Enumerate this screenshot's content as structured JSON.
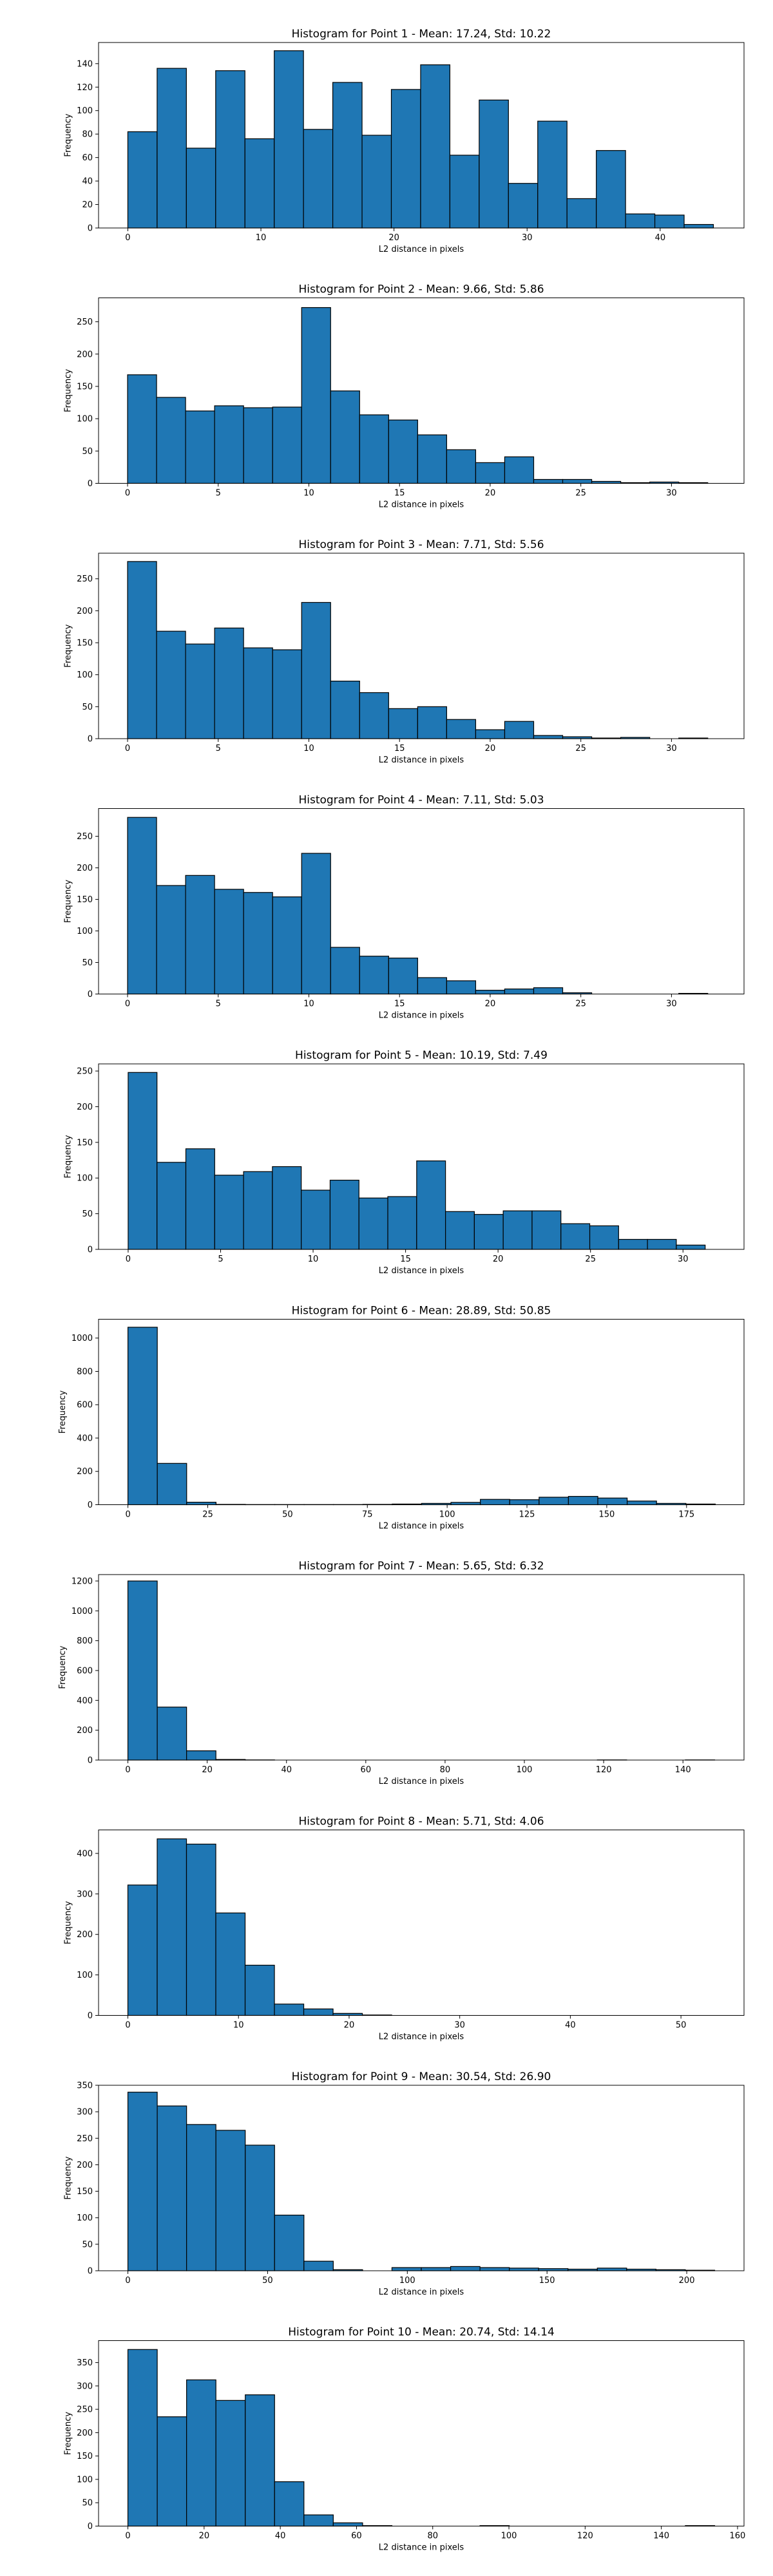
{
  "chart_data": [
    {
      "type": "bar",
      "title": "Histogram for Point 1 - Mean: 17.24, Std: 10.22",
      "xlabel": "L2 distance in pixels",
      "ylabel": "Frequency",
      "xlim": [
        -2.2,
        46.3
      ],
      "ylim": [
        0,
        158
      ],
      "xticks": [
        0,
        10,
        20,
        30,
        40
      ],
      "yticks": [
        0,
        20,
        40,
        60,
        80,
        100,
        120,
        140
      ],
      "bin_edges": [
        0,
        2.2,
        4.4,
        6.6,
        8.8,
        11.0,
        13.2,
        15.4,
        17.6,
        19.8,
        22.0,
        24.2,
        26.4,
        28.6,
        30.8,
        33.0,
        35.2,
        37.4,
        39.6,
        41.8,
        44.0
      ],
      "values": [
        82,
        136,
        68,
        134,
        76,
        151,
        84,
        124,
        79,
        118,
        139,
        62,
        109,
        38,
        91,
        25,
        66,
        12,
        11,
        3
      ]
    },
    {
      "type": "bar",
      "title": "Histogram for Point 2 - Mean: 9.66, Std: 5.86",
      "xlabel": "L2 distance in pixels",
      "ylabel": "Frequency",
      "xlim": [
        -1.6,
        34.0
      ],
      "ylim": [
        0,
        287
      ],
      "xticks": [
        0,
        5,
        10,
        15,
        20,
        25,
        30
      ],
      "yticks": [
        0,
        50,
        100,
        150,
        200,
        250
      ],
      "bin_edges": [
        0,
        1.6,
        3.2,
        4.8,
        6.4,
        8.0,
        9.6,
        11.2,
        12.8,
        14.4,
        16.0,
        17.6,
        19.2,
        20.8,
        22.4,
        24.0,
        25.6,
        27.2,
        28.8,
        30.4,
        32.0
      ],
      "values": [
        168,
        133,
        112,
        120,
        117,
        118,
        272,
        143,
        106,
        98,
        75,
        52,
        32,
        41,
        6,
        6,
        3,
        1,
        2,
        1
      ]
    },
    {
      "type": "bar",
      "title": "Histogram for Point 3 - Mean: 7.71, Std: 5.56",
      "xlabel": "L2 distance in pixels",
      "ylabel": "Frequency",
      "xlim": [
        -1.6,
        34.0
      ],
      "ylim": [
        0,
        290
      ],
      "xticks": [
        0,
        5,
        10,
        15,
        20,
        25,
        30
      ],
      "yticks": [
        0,
        50,
        100,
        150,
        200,
        250
      ],
      "bin_edges": [
        0,
        1.6,
        3.2,
        4.8,
        6.4,
        8.0,
        9.6,
        11.2,
        12.8,
        14.4,
        16.0,
        17.6,
        19.2,
        20.8,
        22.4,
        24.0,
        25.6,
        27.2,
        28.8,
        30.4,
        32.0
      ],
      "values": [
        277,
        168,
        148,
        173,
        142,
        139,
        213,
        90,
        72,
        47,
        50,
        30,
        14,
        27,
        5,
        3,
        1,
        2,
        0,
        1
      ]
    },
    {
      "type": "bar",
      "title": "Histogram for Point 4 - Mean: 7.11, Std: 5.03",
      "xlabel": "L2 distance in pixels",
      "ylabel": "Frequency",
      "xlim": [
        -1.6,
        34.0
      ],
      "ylim": [
        0,
        294
      ],
      "xticks": [
        0,
        5,
        10,
        15,
        20,
        25,
        30
      ],
      "yticks": [
        0,
        50,
        100,
        150,
        200,
        250
      ],
      "bin_edges": [
        0,
        1.6,
        3.2,
        4.8,
        6.4,
        8.0,
        9.6,
        11.2,
        12.8,
        14.4,
        16.0,
        17.6,
        19.2,
        20.8,
        22.4,
        24.0,
        25.6,
        27.2,
        28.8,
        30.4,
        32.0
      ],
      "values": [
        280,
        172,
        188,
        166,
        161,
        154,
        223,
        74,
        60,
        57,
        26,
        21,
        6,
        8,
        10,
        2,
        0,
        0,
        0,
        1
      ]
    },
    {
      "type": "bar",
      "title": "Histogram for Point 5 - Mean: 10.19, Std: 7.49",
      "xlabel": "L2 distance in pixels",
      "ylabel": "Frequency",
      "xlim": [
        -1.6,
        33.3
      ],
      "ylim": [
        0,
        260
      ],
      "xticks": [
        0,
        5,
        10,
        15,
        20,
        25,
        30
      ],
      "yticks": [
        0,
        50,
        100,
        150,
        200,
        250
      ],
      "bin_edges": [
        0,
        1.56,
        3.12,
        4.68,
        6.24,
        7.8,
        9.36,
        10.92,
        12.48,
        14.04,
        15.6,
        17.16,
        18.72,
        20.28,
        21.84,
        23.4,
        24.96,
        26.52,
        28.08,
        29.64,
        31.2
      ],
      "values": [
        248,
        122,
        141,
        104,
        109,
        116,
        83,
        97,
        72,
        74,
        124,
        53,
        49,
        54,
        54,
        36,
        33,
        14,
        14,
        6
      ]
    },
    {
      "type": "bar",
      "title": "Histogram for Point 6 - Mean: 28.89, Std: 50.85",
      "xlabel": "L2 distance in pixels",
      "ylabel": "Frequency",
      "xlim": [
        -9.2,
        193.0
      ],
      "ylim": [
        0,
        1113
      ],
      "xticks": [
        0,
        25,
        50,
        75,
        100,
        125,
        150,
        175
      ],
      "yticks": [
        0,
        200,
        400,
        600,
        800,
        1000
      ],
      "bin_edges": [
        0,
        9.2,
        18.4,
        27.6,
        36.8,
        46.0,
        55.2,
        64.4,
        73.6,
        82.8,
        92.0,
        101.2,
        110.4,
        119.6,
        128.8,
        138.0,
        147.2,
        156.4,
        165.6,
        174.8,
        184.0
      ],
      "values": [
        1065,
        248,
        15,
        2,
        1,
        1,
        1,
        1,
        2,
        4,
        8,
        14,
        32,
        30,
        45,
        50,
        40,
        22,
        8,
        4
      ]
    },
    {
      "type": "bar",
      "title": "Histogram for Point 7 - Mean: 5.65, Std: 6.32",
      "xlabel": "L2 distance in pixels",
      "ylabel": "Frequency",
      "xlim": [
        -7.4,
        155.4
      ],
      "ylim": [
        0,
        1243
      ],
      "xticks": [
        0,
        20,
        40,
        60,
        80,
        100,
        120,
        140
      ],
      "yticks": [
        0,
        200,
        400,
        600,
        800,
        1000,
        1200
      ],
      "bin_edges": [
        0,
        7.4,
        14.8,
        22.2,
        29.6,
        37.0,
        44.4,
        51.8,
        59.2,
        66.6,
        74.0,
        81.4,
        88.8,
        96.2,
        103.6,
        111.0,
        118.4,
        125.8,
        133.2,
        140.6,
        148.0
      ],
      "values": [
        1200,
        355,
        62,
        4,
        1,
        0,
        0,
        0,
        0,
        0,
        0,
        0,
        0,
        0,
        0,
        0,
        1,
        0,
        0,
        1
      ]
    },
    {
      "type": "bar",
      "title": "Histogram for Point 8 - Mean: 5.71, Std: 4.06",
      "xlabel": "L2 distance in pixels",
      "ylabel": "Frequency",
      "xlim": [
        -2.65,
        55.7
      ],
      "ylim": [
        0,
        458
      ],
      "xticks": [
        0,
        10,
        20,
        30,
        40,
        50
      ],
      "yticks": [
        0,
        100,
        200,
        300,
        400
      ],
      "bin_edges": [
        0,
        2.65,
        5.3,
        7.95,
        10.6,
        13.25,
        15.9,
        18.55,
        21.2,
        23.85,
        26.5,
        29.15,
        31.8,
        34.45,
        37.1,
        39.75,
        42.4,
        45.05,
        47.7,
        50.35,
        53.0
      ],
      "values": [
        322,
        436,
        423,
        253,
        124,
        28,
        16,
        5,
        1,
        0,
        0,
        0,
        0,
        0,
        0,
        0,
        0,
        0,
        0,
        0
      ]
    },
    {
      "type": "bar",
      "title": "Histogram for Point 9 - Mean: 30.54, Std: 26.90",
      "xlabel": "L2 distance in pixels",
      "ylabel": "Frequency",
      "xlim": [
        -10.5,
        220.5
      ],
      "ylim": [
        0,
        350
      ],
      "xticks": [
        0,
        50,
        100,
        150,
        200
      ],
      "yticks": [
        0,
        50,
        100,
        150,
        200,
        250,
        300,
        350
      ],
      "bin_edges": [
        0,
        10.5,
        21.0,
        31.5,
        42.0,
        52.5,
        63.0,
        73.5,
        84.0,
        94.5,
        105.0,
        115.5,
        126.0,
        136.5,
        147.0,
        157.5,
        168.0,
        178.5,
        189.0,
        199.5,
        210.0
      ],
      "values": [
        337,
        311,
        276,
        265,
        237,
        105,
        18,
        2,
        0,
        6,
        6,
        8,
        6,
        5,
        4,
        3,
        5,
        3,
        2,
        1
      ]
    },
    {
      "type": "bar",
      "title": "Histogram for Point 10 - Mean: 20.74, Std: 14.14",
      "xlabel": "L2 distance in pixels",
      "ylabel": "Frequency",
      "xlim": [
        -7.7,
        161.7
      ],
      "ylim": [
        0,
        397
      ],
      "xticks": [
        0,
        20,
        40,
        60,
        80,
        100,
        120,
        140,
        160
      ],
      "yticks": [
        0,
        50,
        100,
        150,
        200,
        250,
        300,
        350
      ],
      "bin_edges": [
        0,
        7.7,
        15.4,
        23.1,
        30.8,
        38.5,
        46.2,
        53.9,
        61.6,
        69.3,
        77.0,
        84.7,
        92.4,
        100.1,
        107.8,
        115.5,
        123.2,
        130.9,
        138.6,
        146.3,
        154.0
      ],
      "values": [
        378,
        234,
        313,
        269,
        281,
        95,
        24,
        7,
        1,
        0,
        0,
        0,
        1,
        0,
        0,
        0,
        0,
        0,
        0,
        1
      ]
    }
  ]
}
